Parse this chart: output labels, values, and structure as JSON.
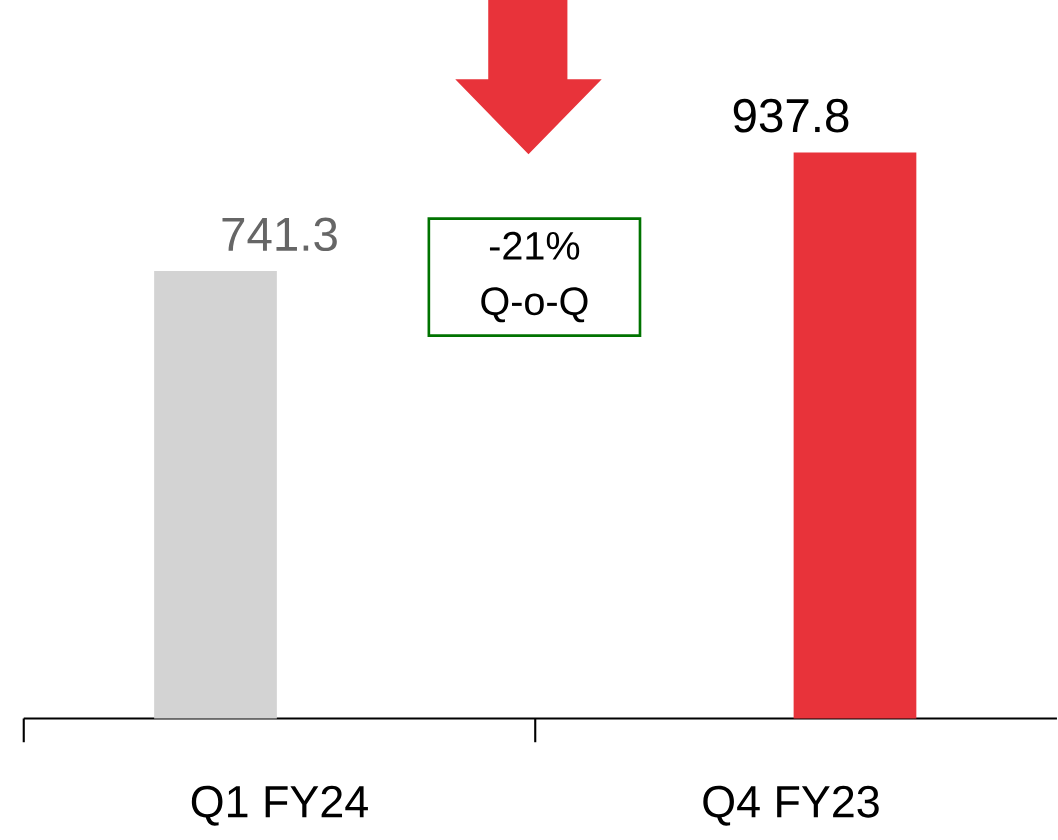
{
  "chart_data": {
    "type": "bar",
    "categories": [
      "Q1 FY24",
      "Q4 FY23"
    ],
    "values": [
      741.3,
      937.8
    ],
    "colors": [
      "#d3d3d3",
      "#e8333a"
    ],
    "data_labels": true,
    "value_labels": [
      "741.3",
      "937.8"
    ],
    "tick_labels": "x",
    "annotations": [
      "-21% Q-o-Q"
    ]
  }
}
